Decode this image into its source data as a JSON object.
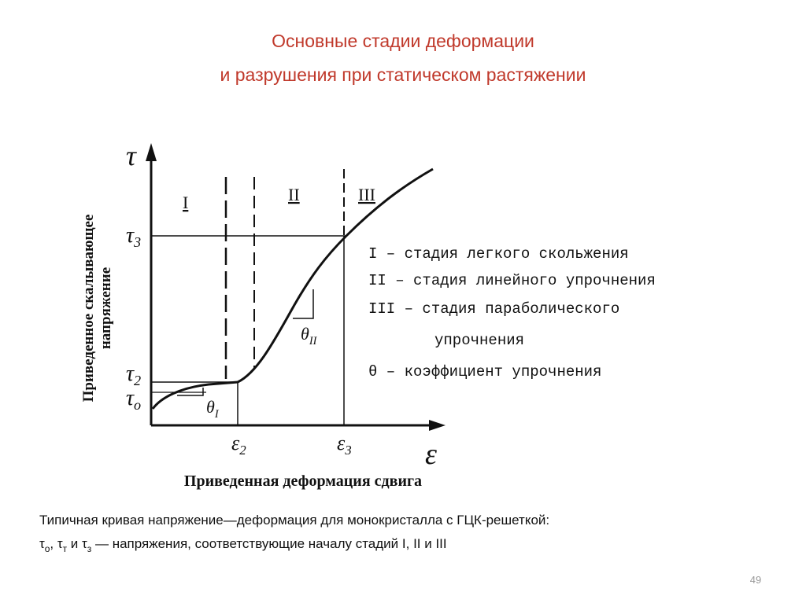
{
  "title": [
    "Основные стадии деформации",
    "и разрушения при статическом растяжении"
  ],
  "diagram": {
    "y_axis_symbol": "τ",
    "x_axis_symbol": "ε",
    "y_axis_label": [
      "Приведенное скалывающее",
      "напряжение"
    ],
    "x_axis_label": "Приведенная деформация сдвига",
    "y_ticks": [
      {
        "base": "τ",
        "sub": "3"
      },
      {
        "base": "τ",
        "sub": "2"
      },
      {
        "base": "τ",
        "sub": "o"
      }
    ],
    "x_ticks": [
      {
        "base": "ε",
        "sub": "2"
      },
      {
        "base": "ε",
        "sub": "3"
      }
    ],
    "stages": [
      "I",
      "II",
      "III"
    ],
    "slopes": [
      {
        "base": "θ",
        "sub": "I"
      },
      {
        "base": "θ",
        "sub": "II"
      }
    ],
    "legend": [
      "I – стадия легкого скольжения",
      "II – стадия линейного упрочнения",
      "III – стадия параболического",
      "упрочнения",
      "θ – коэффициент упрочнения"
    ]
  },
  "caption": {
    "line1": "Типичная кривая напряжение—деформация для монокристалла с ГЦК-решеткой:",
    "line2": [
      {
        "text": "τ"
      },
      {
        "sub": "о"
      },
      {
        "text": ", τ"
      },
      {
        "sub": "т"
      },
      {
        "text": " и τ"
      },
      {
        "sub": "з"
      },
      {
        "text": " — напряжения, соответствующие началу стадий I, II и III"
      }
    ]
  },
  "page_number": "49"
}
